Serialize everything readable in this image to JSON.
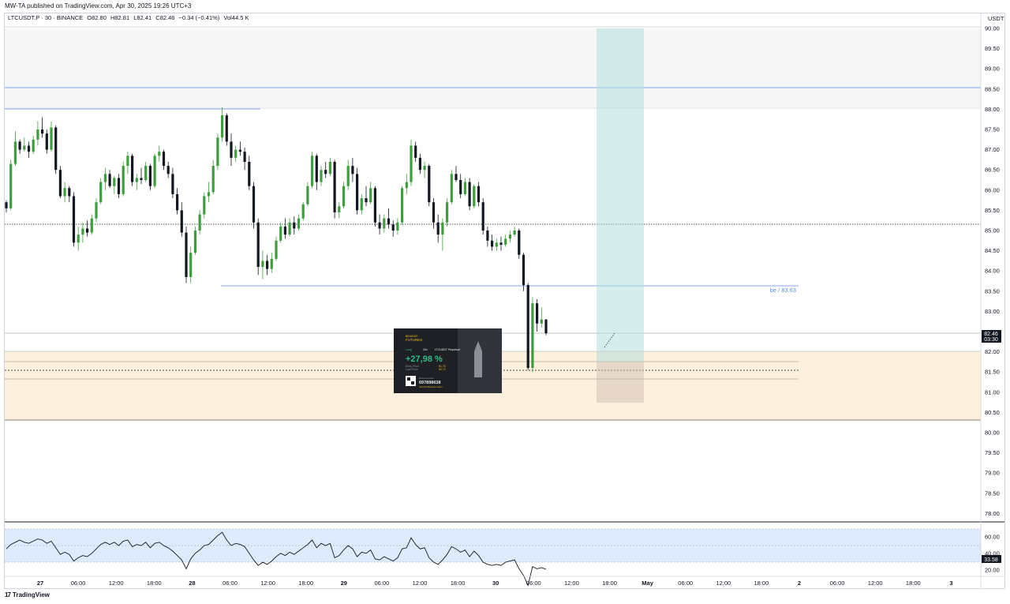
{
  "header": {
    "publish_line": "MW-TA published on TradingView.com, Apr 30, 2025 19:26 UTC+3"
  },
  "legend": {
    "symbol": "LTCUSDT.P · 30 · BINANCE",
    "open": "O82.80",
    "high": "H82.81",
    "low": "L82.41",
    "close": "C82.46",
    "change": "−0.34 (−0.41%)",
    "volume": "Vol44.5 K"
  },
  "price_axis": {
    "currency": "USDT",
    "ticks": [
      "90.00",
      "89.50",
      "89.00",
      "88.50",
      "88.00",
      "87.50",
      "87.00",
      "86.50",
      "86.00",
      "85.50",
      "85.00",
      "84.50",
      "84.00",
      "83.50",
      "83.00",
      "82.50",
      "82.00",
      "81.50",
      "81.00",
      "80.50",
      "80.00",
      "79.50",
      "79.00",
      "78.50",
      "78.00"
    ],
    "last_price": "82.46",
    "countdown": "03:30"
  },
  "rsi_axis": {
    "ticks": [
      "60.00",
      "40.00",
      "20.00"
    ],
    "current": "33.58"
  },
  "time_axis": {
    "labels": [
      "27",
      "06:00",
      "12:00",
      "18:00",
      "28",
      "06:00",
      "12:00",
      "18:00",
      "29",
      "06:00",
      "12:00",
      "18:00",
      "30",
      "06:00",
      "12:00",
      "18:00",
      "May",
      "06:00",
      "12:00",
      "18:00",
      "2",
      "06:00",
      "12:00",
      "18:00",
      "3"
    ]
  },
  "annotations": {
    "be_label": "be / 83.63"
  },
  "pnl_card": {
    "brand": "FUTURES",
    "brand_top": "BINANCE",
    "side": "Long",
    "leverage": "20x",
    "symbol": "LTCUSDT Perpetual",
    "roi": "+27,98 %",
    "entry_label": "Entry Price",
    "entry_value": "81.76",
    "last_label": "Last Price",
    "last_value": "82.72",
    "referral_label": "Referral Code",
    "referral_code": "697898638",
    "referral_note": "Join the Binance team"
  },
  "footer": {
    "brand": "TradingView",
    "logo": "17"
  },
  "colors": {
    "up": "#089981",
    "down": "#131722",
    "up_body": "#3e9e3e",
    "hline_blue": "#5b8def",
    "profit_zone": "#b2dfdb",
    "demand_zone": "#fdf0dc",
    "rsi_band": "#d6e6fb"
  },
  "chart_data": {
    "type": "candlestick",
    "interval": "30m",
    "ylim": [
      77.75,
      90.0
    ],
    "rsi_ylim": [
      15,
      75
    ],
    "candles": [
      [
        85.7,
        85.75,
        85.45,
        85.55
      ],
      [
        85.55,
        86.75,
        85.5,
        86.65
      ],
      [
        86.65,
        87.45,
        86.6,
        87.2
      ],
      [
        87.2,
        87.25,
        86.9,
        87.0
      ],
      [
        87.0,
        87.3,
        86.95,
        87.1
      ],
      [
        87.1,
        87.2,
        86.8,
        86.95
      ],
      [
        86.95,
        87.35,
        86.9,
        87.25
      ],
      [
        87.25,
        87.7,
        87.1,
        87.5
      ],
      [
        87.5,
        87.8,
        87.3,
        87.4
      ],
      [
        87.4,
        87.5,
        86.9,
        87.0
      ],
      [
        87.0,
        87.7,
        86.95,
        87.55
      ],
      [
        87.55,
        87.6,
        86.4,
        86.5
      ],
      [
        86.5,
        86.6,
        85.8,
        85.85
      ],
      [
        85.85,
        86.2,
        85.7,
        86.05
      ],
      [
        86.05,
        86.1,
        85.7,
        85.85
      ],
      [
        85.85,
        85.95,
        84.6,
        84.7
      ],
      [
        84.7,
        85.1,
        84.5,
        84.9
      ],
      [
        84.9,
        85.2,
        84.7,
        85.05
      ],
      [
        85.05,
        85.25,
        84.85,
        84.95
      ],
      [
        84.95,
        85.4,
        84.9,
        85.3
      ],
      [
        85.3,
        85.8,
        85.2,
        85.7
      ],
      [
        85.7,
        86.3,
        85.65,
        86.2
      ],
      [
        86.2,
        86.55,
        86.0,
        86.4
      ],
      [
        86.4,
        86.5,
        86.05,
        86.1
      ],
      [
        86.1,
        86.35,
        85.9,
        86.3
      ],
      [
        86.3,
        86.4,
        85.8,
        85.9
      ],
      [
        85.9,
        86.7,
        85.85,
        86.6
      ],
      [
        86.6,
        86.95,
        86.4,
        86.85
      ],
      [
        86.85,
        86.9,
        86.1,
        86.2
      ],
      [
        86.2,
        86.4,
        86.0,
        86.3
      ],
      [
        86.3,
        86.55,
        86.15,
        86.25
      ],
      [
        86.25,
        86.7,
        86.2,
        86.6
      ],
      [
        86.6,
        86.65,
        86.0,
        86.1
      ],
      [
        86.1,
        86.9,
        86.05,
        86.85
      ],
      [
        86.85,
        87.1,
        86.7,
        86.95
      ],
      [
        86.95,
        87.0,
        86.5,
        86.6
      ],
      [
        86.6,
        86.7,
        86.3,
        86.4
      ],
      [
        86.4,
        86.55,
        85.8,
        85.9
      ],
      [
        85.9,
        86.05,
        85.4,
        85.5
      ],
      [
        85.5,
        85.7,
        84.85,
        84.95
      ],
      [
        84.95,
        85.1,
        83.7,
        83.85
      ],
      [
        83.85,
        84.6,
        83.7,
        84.45
      ],
      [
        84.45,
        85.1,
        84.4,
        85.0
      ],
      [
        85.0,
        85.5,
        84.9,
        85.4
      ],
      [
        85.4,
        85.95,
        85.3,
        85.85
      ],
      [
        85.85,
        86.2,
        85.7,
        85.95
      ],
      [
        85.95,
        86.75,
        85.9,
        86.6
      ],
      [
        86.6,
        87.4,
        86.5,
        87.3
      ],
      [
        87.3,
        88.05,
        87.2,
        87.85
      ],
      [
        87.85,
        87.9,
        87.1,
        87.2
      ],
      [
        87.2,
        87.4,
        86.6,
        86.8
      ],
      [
        86.8,
        87.1,
        86.7,
        87.0
      ],
      [
        87.0,
        87.2,
        86.85,
        86.95
      ],
      [
        86.95,
        87.05,
        86.5,
        86.7
      ],
      [
        86.7,
        86.85,
        86.0,
        86.1
      ],
      [
        86.1,
        86.2,
        85.05,
        85.2
      ],
      [
        85.2,
        85.3,
        83.9,
        84.1
      ],
      [
        84.1,
        84.5,
        83.8,
        84.25
      ],
      [
        84.25,
        84.4,
        83.9,
        84.05
      ],
      [
        84.05,
        84.45,
        83.95,
        84.3
      ],
      [
        84.3,
        84.85,
        84.25,
        84.75
      ],
      [
        84.75,
        85.2,
        84.7,
        85.1
      ],
      [
        85.1,
        85.3,
        84.8,
        84.9
      ],
      [
        84.9,
        85.3,
        84.85,
        85.2
      ],
      [
        85.2,
        85.35,
        84.9,
        85.05
      ],
      [
        85.05,
        85.4,
        85.0,
        85.3
      ],
      [
        85.3,
        85.7,
        85.25,
        85.65
      ],
      [
        85.65,
        86.2,
        85.6,
        86.1
      ],
      [
        86.1,
        86.95,
        86.05,
        86.85
      ],
      [
        86.85,
        86.9,
        86.0,
        86.2
      ],
      [
        86.2,
        86.6,
        86.1,
        86.5
      ],
      [
        86.5,
        86.7,
        86.3,
        86.4
      ],
      [
        86.4,
        86.8,
        86.35,
        86.7
      ],
      [
        86.7,
        86.75,
        85.3,
        85.45
      ],
      [
        85.45,
        85.7,
        85.3,
        85.6
      ],
      [
        85.6,
        86.2,
        85.55,
        86.1
      ],
      [
        86.1,
        86.75,
        86.0,
        86.6
      ],
      [
        86.6,
        86.8,
        86.2,
        86.4
      ],
      [
        86.4,
        86.55,
        85.4,
        85.5
      ],
      [
        85.5,
        85.9,
        85.4,
        85.8
      ],
      [
        85.8,
        86.1,
        85.6,
        85.7
      ],
      [
        85.7,
        86.2,
        85.65,
        86.05
      ],
      [
        86.05,
        86.1,
        85.1,
        85.2
      ],
      [
        85.2,
        85.4,
        84.9,
        85.05
      ],
      [
        85.05,
        85.4,
        84.95,
        85.3
      ],
      [
        85.3,
        85.55,
        85.05,
        85.15
      ],
      [
        85.15,
        85.25,
        84.85,
        85.0
      ],
      [
        85.0,
        85.3,
        84.9,
        85.2
      ],
      [
        85.2,
        86.1,
        85.15,
        86.05
      ],
      [
        86.05,
        86.4,
        85.9,
        86.2
      ],
      [
        86.2,
        87.25,
        86.1,
        87.1
      ],
      [
        87.1,
        87.2,
        86.7,
        86.8
      ],
      [
        86.8,
        86.9,
        86.4,
        86.5
      ],
      [
        86.5,
        86.7,
        86.3,
        86.6
      ],
      [
        86.6,
        86.65,
        85.6,
        85.7
      ],
      [
        85.7,
        85.8,
        85.05,
        85.2
      ],
      [
        85.2,
        85.4,
        84.7,
        84.9
      ],
      [
        84.9,
        85.3,
        84.5,
        85.2
      ],
      [
        85.2,
        85.8,
        85.1,
        85.7
      ],
      [
        85.7,
        86.5,
        85.65,
        86.4
      ],
      [
        86.4,
        86.6,
        86.2,
        86.25
      ],
      [
        86.25,
        86.4,
        85.8,
        85.9
      ],
      [
        85.9,
        86.3,
        85.85,
        86.2
      ],
      [
        86.2,
        86.3,
        85.5,
        85.6
      ],
      [
        85.6,
        86.15,
        85.55,
        86.1
      ],
      [
        86.1,
        86.2,
        85.6,
        85.7
      ],
      [
        85.7,
        85.8,
        84.9,
        85.0
      ],
      [
        85.0,
        85.1,
        84.6,
        84.75
      ],
      [
        84.75,
        84.9,
        84.5,
        84.6
      ],
      [
        84.6,
        84.8,
        84.5,
        84.7
      ],
      [
        84.7,
        84.85,
        84.5,
        84.65
      ],
      [
        84.65,
        84.9,
        84.6,
        84.8
      ],
      [
        84.8,
        85.0,
        84.7,
        84.9
      ],
      [
        84.9,
        85.1,
        84.85,
        85.0
      ],
      [
        85.0,
        85.05,
        84.3,
        84.4
      ],
      [
        84.4,
        84.45,
        83.5,
        83.65
      ],
      [
        83.65,
        83.7,
        81.55,
        81.6
      ],
      [
        81.6,
        83.35,
        81.5,
        83.2
      ],
      [
        83.2,
        83.3,
        82.5,
        82.7
      ],
      [
        82.7,
        83.1,
        82.6,
        82.8
      ],
      [
        82.8,
        82.81,
        82.41,
        82.46
      ]
    ],
    "rsi": [
      52,
      56,
      58,
      60,
      58,
      57,
      59,
      61,
      60,
      57,
      59,
      53,
      47,
      49,
      47,
      41,
      44,
      46,
      45,
      48,
      52,
      56,
      58,
      56,
      58,
      55,
      59,
      60,
      54,
      56,
      55,
      58,
      53,
      57,
      58,
      55,
      53,
      50,
      46,
      42,
      34,
      43,
      48,
      51,
      55,
      56,
      60,
      64,
      67,
      60,
      55,
      57,
      56,
      54,
      48,
      42,
      37,
      40,
      38,
      41,
      45,
      48,
      46,
      49,
      47,
      50,
      53,
      56,
      60,
      53,
      57,
      55,
      57,
      44,
      46,
      51,
      55,
      52,
      45,
      49,
      48,
      51,
      43,
      42,
      45,
      43,
      41,
      44,
      52,
      53,
      62,
      56,
      52,
      53,
      44,
      40,
      38,
      42,
      47,
      54,
      52,
      49,
      51,
      45,
      50,
      46,
      40,
      38,
      37,
      38,
      37,
      40,
      41,
      42,
      34,
      28,
      19,
      36,
      34,
      35,
      33.58
    ],
    "horizontal_levels": [
      88.5,
      88.0,
      85.1,
      83.63,
      82.5,
      81.75,
      81.5,
      81.3
    ],
    "zones": [
      {
        "name": "supply",
        "from": 88.0,
        "to": 90.0
      },
      {
        "name": "demand",
        "from": 80.3,
        "to": 82.0
      }
    ],
    "position": {
      "side": "long",
      "entry": 81.75,
      "target": 90.0,
      "stop": 80.7,
      "be": 83.63
    }
  }
}
